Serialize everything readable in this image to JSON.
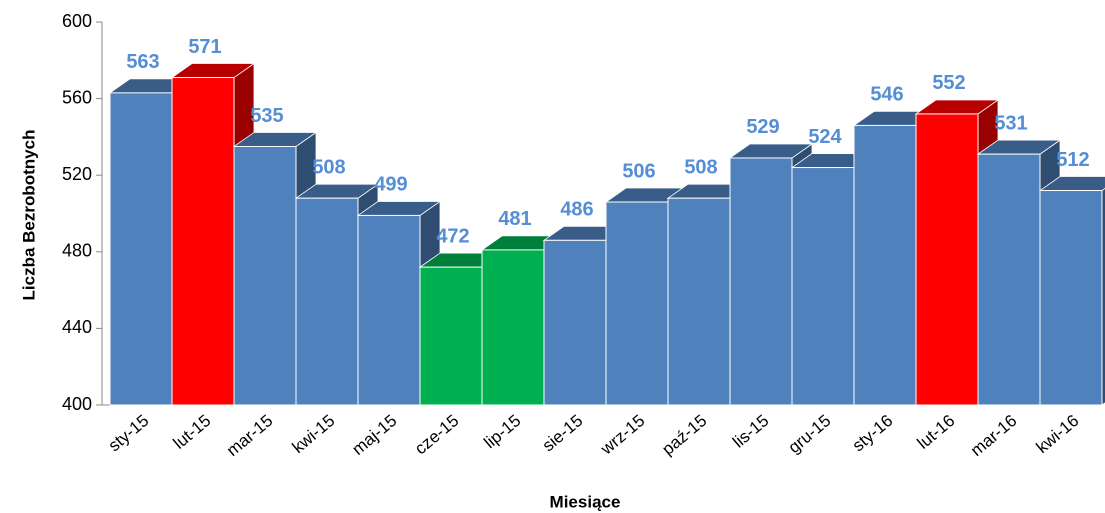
{
  "chart_data": {
    "type": "bar3d",
    "categories": [
      "sty-15",
      "lut-15",
      "mar-15",
      "kwi-15",
      "maj-15",
      "cze-15",
      "lip-15",
      "sie-15",
      "wrz-15",
      "paź-15",
      "lis-15",
      "gru-15",
      "sty-16",
      "lut-16",
      "mar-16",
      "kwi-16"
    ],
    "values": [
      563,
      571,
      535,
      508,
      499,
      472,
      481,
      486,
      506,
      508,
      529,
      524,
      546,
      552,
      531,
      512
    ],
    "colors": [
      "#4f81bd",
      "#ff0000",
      "#4f81bd",
      "#4f81bd",
      "#4f81bd",
      "#00b050",
      "#00b050",
      "#4f81bd",
      "#4f81bd",
      "#4f81bd",
      "#4f81bd",
      "#4f81bd",
      "#4f81bd",
      "#ff0000",
      "#4f81bd",
      "#4f81bd"
    ],
    "label_color": "#558ed5",
    "ylim": [
      400,
      600
    ],
    "yticks": [
      400,
      440,
      480,
      520,
      560,
      600
    ],
    "y_label": "Liczba Bezrobotnych",
    "x_label": "Miesiące"
  }
}
